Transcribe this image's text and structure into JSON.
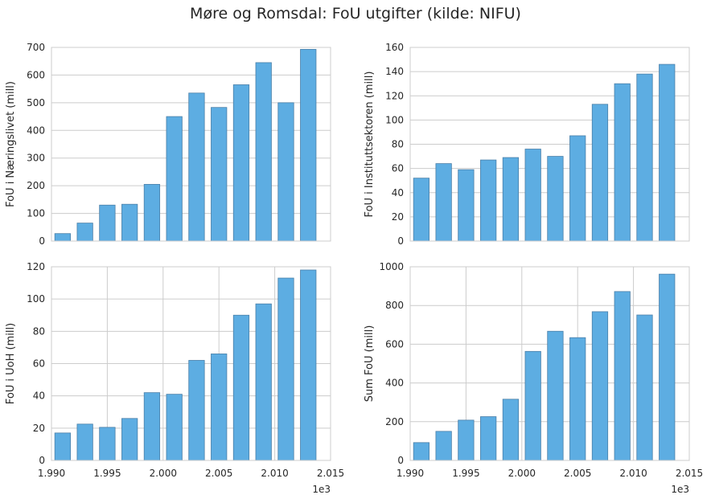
{
  "title": "Møre og Romsdal: FoU utgifter (kilde: NIFU)",
  "colors": {
    "bar": "#5dade2",
    "bar_edge": "#4a7fa8",
    "grid": "#cccccc",
    "background": "#ffffff"
  },
  "chart_data": [
    {
      "type": "bar",
      "ylabel": "FoU i Næringslivet (mill)",
      "x": [
        1991,
        1993,
        1995,
        1997,
        1999,
        2001,
        2003,
        2005,
        2007,
        2009,
        2011,
        2013
      ],
      "values": [
        27,
        65,
        130,
        133,
        205,
        450,
        535,
        483,
        565,
        645,
        500,
        693
      ],
      "xlim": [
        1990,
        2015
      ],
      "ylim": [
        0,
        700
      ],
      "yticks": [
        "0",
        "100",
        "200",
        "300",
        "400",
        "500",
        "600",
        "700"
      ],
      "ytick_values": [
        0,
        100,
        200,
        300,
        400,
        500,
        600,
        700
      ],
      "xticks": [],
      "grid": true
    },
    {
      "type": "bar",
      "ylabel": "FoU i Instituttsektoren (mill)",
      "x": [
        1991,
        1993,
        1995,
        1997,
        1999,
        2001,
        2003,
        2005,
        2007,
        2009,
        2011,
        2013
      ],
      "values": [
        52,
        64,
        59,
        67,
        69,
        76,
        70,
        87,
        113,
        130,
        138,
        146
      ],
      "xlim": [
        1990,
        2015
      ],
      "ylim": [
        0,
        160
      ],
      "yticks": [
        "0",
        "20",
        "40",
        "60",
        "80",
        "100",
        "120",
        "140",
        "160"
      ],
      "ytick_values": [
        0,
        20,
        40,
        60,
        80,
        100,
        120,
        140,
        160
      ],
      "xticks": [],
      "grid": true
    },
    {
      "type": "bar",
      "ylabel": "FoU i UoH (mill)",
      "x": [
        1991,
        1993,
        1995,
        1997,
        1999,
        2001,
        2003,
        2005,
        2007,
        2009,
        2011,
        2013
      ],
      "values": [
        17,
        22.5,
        20.5,
        26,
        42,
        41,
        62,
        66,
        90,
        97,
        113,
        118
      ],
      "xlim": [
        1990,
        2015
      ],
      "ylim": [
        0,
        120
      ],
      "yticks": [
        "0",
        "20",
        "40",
        "60",
        "80",
        "100",
        "120"
      ],
      "ytick_values": [
        0,
        20,
        40,
        60,
        80,
        100,
        120
      ],
      "xticks": [
        "1.990",
        "1.995",
        "2.000",
        "2.005",
        "2.010",
        "2.015"
      ],
      "xtick_values": [
        1990,
        1995,
        2000,
        2005,
        2010,
        2015
      ],
      "x_offset": "1e3",
      "grid": true
    },
    {
      "type": "bar",
      "ylabel": "Sum FoU (mill)",
      "x": [
        1991,
        1993,
        1995,
        1997,
        1999,
        2001,
        2003,
        2005,
        2007,
        2009,
        2011,
        2013
      ],
      "values": [
        92,
        150,
        208,
        226,
        316,
        563,
        667,
        634,
        768,
        872,
        751,
        962
      ],
      "xlim": [
        1990,
        2015
      ],
      "ylim": [
        0,
        1000
      ],
      "yticks": [
        "0",
        "200",
        "400",
        "600",
        "800",
        "1000"
      ],
      "ytick_values": [
        0,
        200,
        400,
        600,
        800,
        1000
      ],
      "xticks": [
        "1.990",
        "1.995",
        "2.000",
        "2.005",
        "2.010",
        "2.015"
      ],
      "xtick_values": [
        1990,
        1995,
        2000,
        2005,
        2010,
        2015
      ],
      "x_offset": "1e3",
      "grid": true
    }
  ]
}
